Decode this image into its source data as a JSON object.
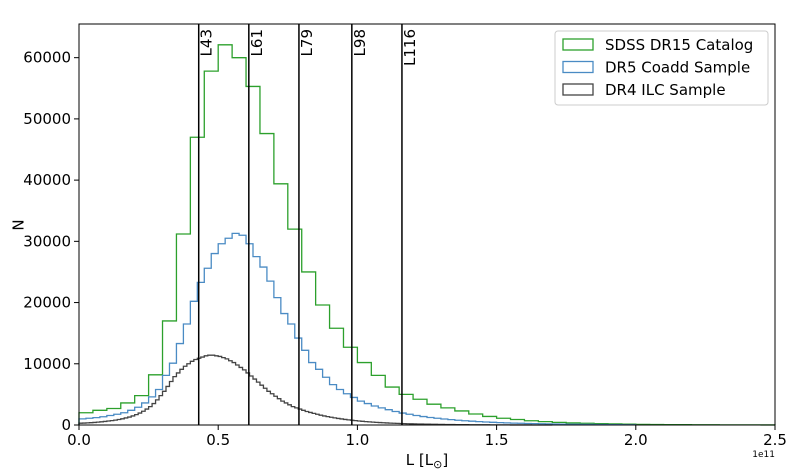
{
  "chart_data": {
    "type": "histogram",
    "xlabel_main": "L [L",
    "xlabel_sub": "⊙",
    "xlabel_close": "]",
    "ylabel": "N",
    "x_offset_text": "1e11",
    "x_scale_note": "x values in units of 1e11 L_sun",
    "xlim": [
      0,
      2.5
    ],
    "ylim": [
      0,
      65500
    ],
    "x_ticks": [
      {
        "value": 0.0,
        "label": "0.0"
      },
      {
        "value": 0.5,
        "label": "0.5"
      },
      {
        "value": 1.0,
        "label": "1.0"
      },
      {
        "value": 1.5,
        "label": "1.5"
      },
      {
        "value": 2.0,
        "label": "2.0"
      },
      {
        "value": 2.5,
        "label": "2.5"
      }
    ],
    "y_ticks": [
      {
        "value": 0,
        "label": "0"
      },
      {
        "value": 10000,
        "label": "10000"
      },
      {
        "value": 20000,
        "label": "20000"
      },
      {
        "value": 30000,
        "label": "30000"
      },
      {
        "value": 40000,
        "label": "40000"
      },
      {
        "value": 50000,
        "label": "50000"
      },
      {
        "value": 60000,
        "label": "60000"
      }
    ],
    "grid": false,
    "legend_position": "top-right",
    "series": [
      {
        "name": "SDSS DR15 Catalog",
        "color": "#2ca02c",
        "bin_start": 0.0,
        "bin_width": 0.05,
        "counts": [
          2000,
          2400,
          2700,
          3600,
          4800,
          8200,
          17000,
          31200,
          47000,
          57800,
          62100,
          60000,
          55300,
          47600,
          39400,
          32000,
          25000,
          19600,
          15800,
          12700,
          10200,
          8100,
          6200,
          5000,
          4200,
          3400,
          2800,
          2300,
          1800,
          1400,
          1100,
          900,
          700,
          550,
          430,
          340,
          280,
          220,
          170,
          130,
          100,
          80,
          60,
          50,
          40,
          30,
          25,
          20,
          15,
          10
        ]
      },
      {
        "name": "DR5 Coadd Sample",
        "color": "#4a8bc4",
        "bin_start": 0.0,
        "bin_width": 0.025,
        "counts": [
          1000,
          1100,
          1200,
          1350,
          1550,
          1750,
          2000,
          2400,
          2900,
          3600,
          4600,
          5800,
          8100,
          10100,
          13300,
          16500,
          20200,
          23300,
          25600,
          28000,
          29600,
          30500,
          31300,
          31000,
          29600,
          27500,
          25800,
          23500,
          20800,
          18200,
          16500,
          14200,
          12200,
          10200,
          9100,
          7800,
          6600,
          5800,
          5100,
          4500,
          3900,
          3500,
          3100,
          2800,
          2500,
          2200,
          1950,
          1750,
          1550,
          1380,
          1230,
          1100,
          980,
          880,
          780,
          700,
          620,
          550,
          490,
          440,
          390,
          350,
          310,
          280,
          250,
          220,
          200,
          180,
          160,
          140,
          125,
          110,
          100,
          90,
          80,
          70,
          60,
          50,
          45,
          40
        ]
      },
      {
        "name": "DR4 ILC Sample",
        "color": "#444444",
        "bin_start": 0.0,
        "bin_width": 0.0125,
        "counts": [
          300,
          320,
          350,
          380,
          420,
          470,
          520,
          580,
          650,
          720,
          800,
          900,
          1010,
          1150,
          1300,
          1480,
          1700,
          1950,
          2250,
          2600,
          3000,
          3500,
          4100,
          4800,
          5500,
          6300,
          7100,
          7900,
          8500,
          9100,
          9600,
          10000,
          10400,
          10700,
          10900,
          11100,
          11300,
          11400,
          11400,
          11300,
          11200,
          11000,
          10800,
          10500,
          10200,
          9800,
          9400,
          9000,
          8500,
          8000,
          7500,
          7000,
          6500,
          6000,
          5500,
          5100,
          4700,
          4300,
          3900,
          3600,
          3300,
          3000,
          2800,
          2600,
          2400,
          2200,
          2050,
          1900,
          1750,
          1600,
          1480,
          1370,
          1260,
          1160,
          1070,
          990,
          910,
          840,
          770,
          710,
          650,
          600,
          550,
          510,
          470,
          430,
          400,
          370,
          340,
          310,
          290,
          270,
          250,
          230,
          210,
          195,
          180,
          165,
          150,
          140,
          130,
          120,
          110,
          100,
          92,
          85,
          78,
          72,
          66,
          60,
          55,
          50,
          46,
          42,
          38,
          35,
          32,
          29,
          26,
          24,
          22,
          20,
          18,
          16,
          14,
          12,
          10,
          9,
          8,
          7,
          6,
          5,
          4,
          3,
          2,
          1
        ]
      }
    ],
    "vertical_lines": [
      {
        "x": 0.43,
        "label": "L43"
      },
      {
        "x": 0.61,
        "label": "L61"
      },
      {
        "x": 0.79,
        "label": "L79"
      },
      {
        "x": 0.98,
        "label": "L98"
      },
      {
        "x": 1.16,
        "label": "L116"
      }
    ]
  }
}
